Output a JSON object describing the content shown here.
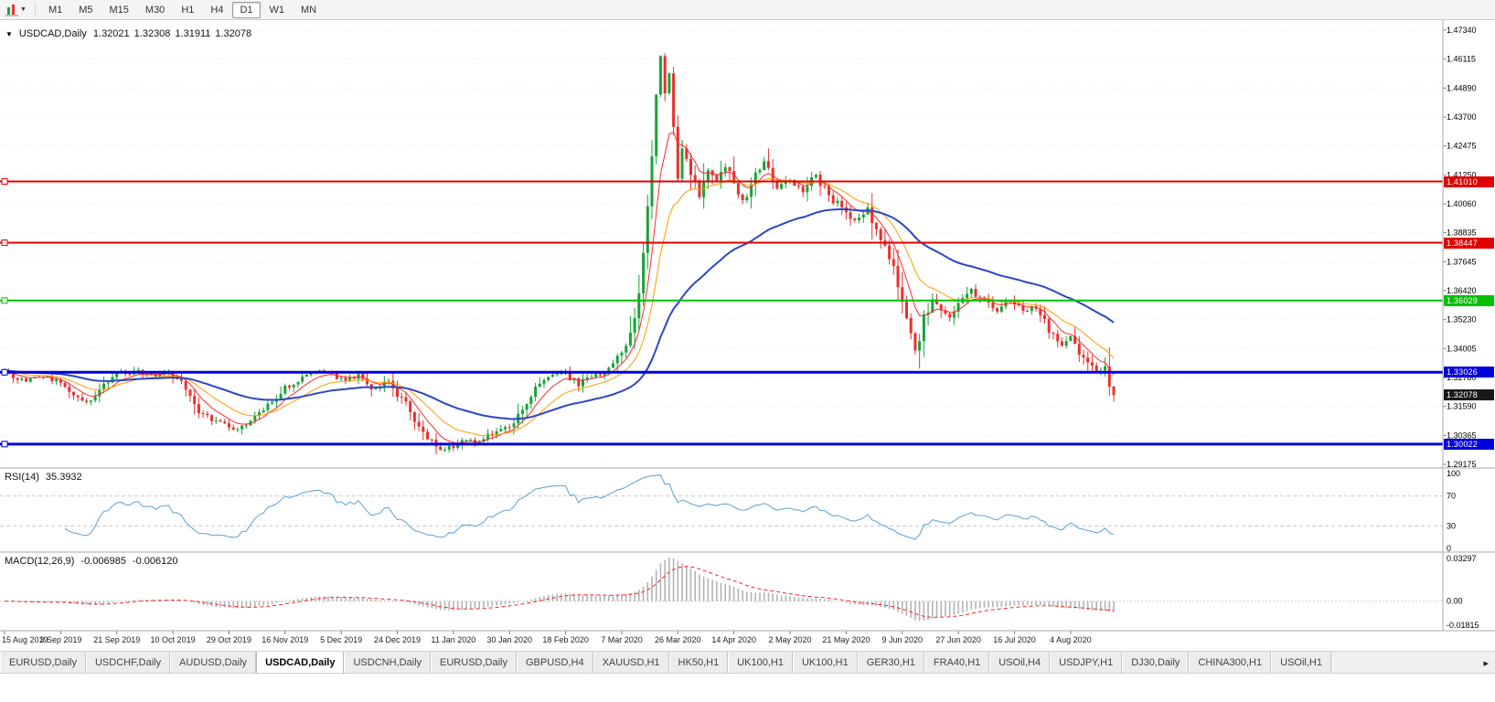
{
  "toolbar": {
    "timeframes": [
      "M1",
      "M5",
      "M15",
      "M30",
      "H1",
      "H4",
      "D1",
      "W1",
      "MN"
    ],
    "active_timeframe": "D1"
  },
  "header": {
    "symbol": "USDCAD,Daily",
    "open": "1.32021",
    "high": "1.32308",
    "low": "1.31911",
    "close": "1.32078"
  },
  "indicators": {
    "rsi": {
      "name": "RSI(14)",
      "value": "35.3932",
      "levels": [
        "100",
        "70",
        "30",
        "0"
      ],
      "level_values": [
        100,
        70,
        30,
        0
      ],
      "upper": 70,
      "lower": 30,
      "line_color": "#5a9fd4"
    },
    "macd": {
      "name": "MACD(12,26,9)",
      "value_main": "-0.006985",
      "value_signal": "-0.006120",
      "scale_labels": [
        "0.03297",
        "0.00",
        "-0.01815"
      ],
      "scale_max": 0.03297,
      "scale_zero": 0.0,
      "scale_min": -0.01815,
      "histogram_color": "#b3b3b3",
      "signal_color": "#ff2222"
    }
  },
  "price_axis": {
    "top": 1.4734,
    "bottom": 1.29175,
    "labels": [
      "1.47340",
      "1.46115",
      "1.44890",
      "1.43700",
      "1.42475",
      "1.41250",
      "1.40060",
      "1.38835",
      "1.37645",
      "1.36420",
      "1.35230",
      "1.34005",
      "1.32780",
      "1.31590",
      "1.30365",
      "1.29175"
    ]
  },
  "hlines": [
    {
      "price": 1.4101,
      "label": "1.41010",
      "color": "#e00000",
      "width": 2
    },
    {
      "price": 1.38447,
      "label": "1.38447",
      "color": "#e00000",
      "width": 2
    },
    {
      "price": 1.36029,
      "label": "1.36029",
      "color": "#00c000",
      "width": 2
    },
    {
      "price": 1.33026,
      "label": "1.33026",
      "color": "#0000dd",
      "width": 3
    },
    {
      "price": 1.30022,
      "label": "1.30022",
      "color": "#0000dd",
      "width": 3
    }
  ],
  "current_price": {
    "label": "1.32078",
    "value": 1.32078,
    "color": "#1a1a1a"
  },
  "time_axis": [
    "15 Aug 2019",
    "3 Sep 2019",
    "21 Sep 2019",
    "10 Oct 2019",
    "29 Oct 2019",
    "16 Nov 2019",
    "5 Dec 2019",
    "24 Dec 2019",
    "11 Jan 2020",
    "30 Jan 2020",
    "18 Feb 2020",
    "7 Mar 2020",
    "26 Mar 2020",
    "14 Apr 2020",
    "2 May 2020",
    "21 May 2020",
    "9 Jun 2020",
    "27 Jun 2020",
    "16 Jul 2020",
    "4 Aug 2020"
  ],
  "chart_data": {
    "type": "candlestick",
    "symbol": "USDCAD",
    "timeframe": "Daily",
    "x_range": [
      "15 Aug 2019",
      "14 Aug 2020"
    ],
    "y_range": [
      1.29175,
      1.4734
    ],
    "candle_count": 258,
    "seed": 20200814,
    "last_close": 1.32078,
    "peak_high": 1.469,
    "close_waypoints": [
      [
        0,
        1.33
      ],
      [
        4,
        1.3268
      ],
      [
        8,
        1.3292
      ],
      [
        12,
        1.3262
      ],
      [
        16,
        1.3212
      ],
      [
        19,
        1.3172
      ],
      [
        23,
        1.3262
      ],
      [
        27,
        1.3298
      ],
      [
        31,
        1.3306
      ],
      [
        35,
        1.3282
      ],
      [
        38,
        1.33
      ],
      [
        41,
        1.3262
      ],
      [
        45,
        1.3142
      ],
      [
        49,
        1.3096
      ],
      [
        54,
        1.3066
      ],
      [
        58,
        1.3112
      ],
      [
        62,
        1.3182
      ],
      [
        66,
        1.3252
      ],
      [
        70,
        1.3296
      ],
      [
        74,
        1.3306
      ],
      [
        78,
        1.3272
      ],
      [
        82,
        1.3286
      ],
      [
        86,
        1.3226
      ],
      [
        89,
        1.3266
      ],
      [
        93,
        1.3164
      ],
      [
        97,
        1.3044
      ],
      [
        101,
        1.2978
      ],
      [
        104,
        1.2996
      ],
      [
        107,
        1.3028
      ],
      [
        110,
        1.301
      ],
      [
        114,
        1.3058
      ],
      [
        118,
        1.3092
      ],
      [
        121,
        1.318
      ],
      [
        124,
        1.3252
      ],
      [
        127,
        1.329
      ],
      [
        130,
        1.3296
      ],
      [
        133,
        1.3252
      ],
      [
        136,
        1.3286
      ],
      [
        139,
        1.3302
      ],
      [
        141,
        1.334
      ],
      [
        143,
        1.3392
      ],
      [
        145,
        1.3444
      ],
      [
        147,
        1.362
      ],
      [
        148,
        1.378
      ],
      [
        149,
        1.398
      ],
      [
        150,
        1.422
      ],
      [
        151,
        1.448
      ],
      [
        152,
        1.463
      ],
      [
        153,
        1.448
      ],
      [
        154,
        1.456
      ],
      [
        155,
        1.433
      ],
      [
        156,
        1.412
      ],
      [
        157,
        1.423
      ],
      [
        159,
        1.413
      ],
      [
        161,
        1.404
      ],
      [
        163,
        1.415
      ],
      [
        165,
        1.41
      ],
      [
        167,
        1.417
      ],
      [
        169,
        1.408
      ],
      [
        171,
        1.402
      ],
      [
        174,
        1.412
      ],
      [
        176,
        1.419
      ],
      [
        179,
        1.407
      ],
      [
        182,
        1.411
      ],
      [
        185,
        1.406
      ],
      [
        188,
        1.413
      ],
      [
        191,
        1.404
      ],
      [
        194,
        1.399
      ],
      [
        197,
        1.393
      ],
      [
        200,
        1.399
      ],
      [
        202,
        1.389
      ],
      [
        205,
        1.379
      ],
      [
        207,
        1.368
      ],
      [
        209,
        1.35
      ],
      [
        211,
        1.339
      ],
      [
        213,
        1.353
      ],
      [
        215,
        1.361
      ],
      [
        217,
        1.357
      ],
      [
        219,
        1.353
      ],
      [
        222,
        1.361
      ],
      [
        224,
        1.3648
      ],
      [
        227,
        1.36
      ],
      [
        230,
        1.3566
      ],
      [
        233,
        1.3606
      ],
      [
        236,
        1.3562
      ],
      [
        239,
        1.3576
      ],
      [
        242,
        1.3482
      ],
      [
        245,
        1.3422
      ],
      [
        247,
        1.3448
      ],
      [
        249,
        1.3392
      ],
      [
        251,
        1.3346
      ],
      [
        253,
        1.3302
      ],
      [
        255,
        1.333
      ],
      [
        256,
        1.3262
      ],
      [
        257,
        1.32078
      ]
    ],
    "up_color": "#18a437",
    "down_color": "#e8312e",
    "ma": {
      "fast": {
        "period": 7,
        "color": "#ff2a2a"
      },
      "mid": {
        "period": 16,
        "color": "#ff9d00"
      },
      "slow": {
        "period": 48,
        "color": "#2c46c8"
      }
    }
  },
  "tabs": {
    "items": [
      "EURUSD,Daily",
      "USDCHF,Daily",
      "AUDUSD,Daily",
      "USDCAD,Daily",
      "USDCNH,Daily",
      "EURUSD,Daily",
      "GBPUSD,H4",
      "XAUUSD,H1",
      "HK50,H1",
      "UK100,H1",
      "UK100,H1",
      "GER30,H1",
      "FRA40,H1",
      "USOil,H4",
      "USDJPY,H1",
      "DJ30,Daily",
      "CHINA300,H1",
      "USOil,H1"
    ],
    "active_index": 3,
    "scroll_right_glyph": "▸"
  }
}
